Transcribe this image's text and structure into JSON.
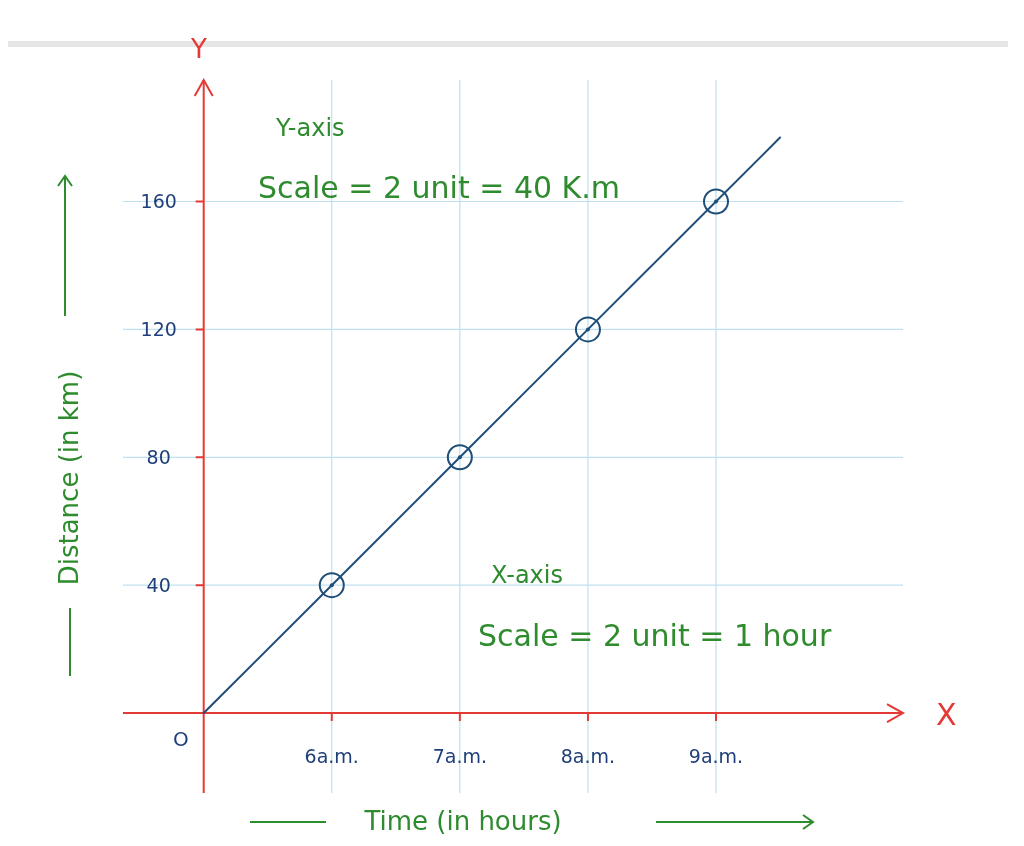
{
  "chart_data": {
    "type": "line",
    "xlabel": "Time (in hours)",
    "ylabel": "Distance (in km)",
    "xlim": [
      4.37,
      10.46
    ],
    "ylim": [
      -25,
      198
    ],
    "xticks": [
      {
        "value": 6,
        "label": "6a.m."
      },
      {
        "value": 7,
        "label": "7a.m."
      },
      {
        "value": 8,
        "label": "8a.m."
      },
      {
        "value": 9,
        "label": "9a.m."
      }
    ],
    "yticks": [
      40,
      80,
      120,
      160
    ],
    "grid": true,
    "series": [
      {
        "color": "#1f4e79",
        "marker": "none",
        "line_style": "solid",
        "x": [
          5,
          6,
          7,
          8,
          9,
          9.5
        ],
        "values": [
          0,
          40,
          80,
          120,
          160,
          180
        ]
      },
      {
        "type": "scatter",
        "color": "#1f4e79",
        "marker": "circle",
        "x": [
          6,
          7,
          8,
          9
        ],
        "values": [
          40,
          80,
          120,
          160
        ]
      }
    ],
    "annotations": [
      "Y-axis",
      "Scale = 2 unit = 40 K.m",
      "X-axis",
      "Scale = 2 unit = 1 hour",
      "O",
      "X",
      "Y"
    ]
  }
}
